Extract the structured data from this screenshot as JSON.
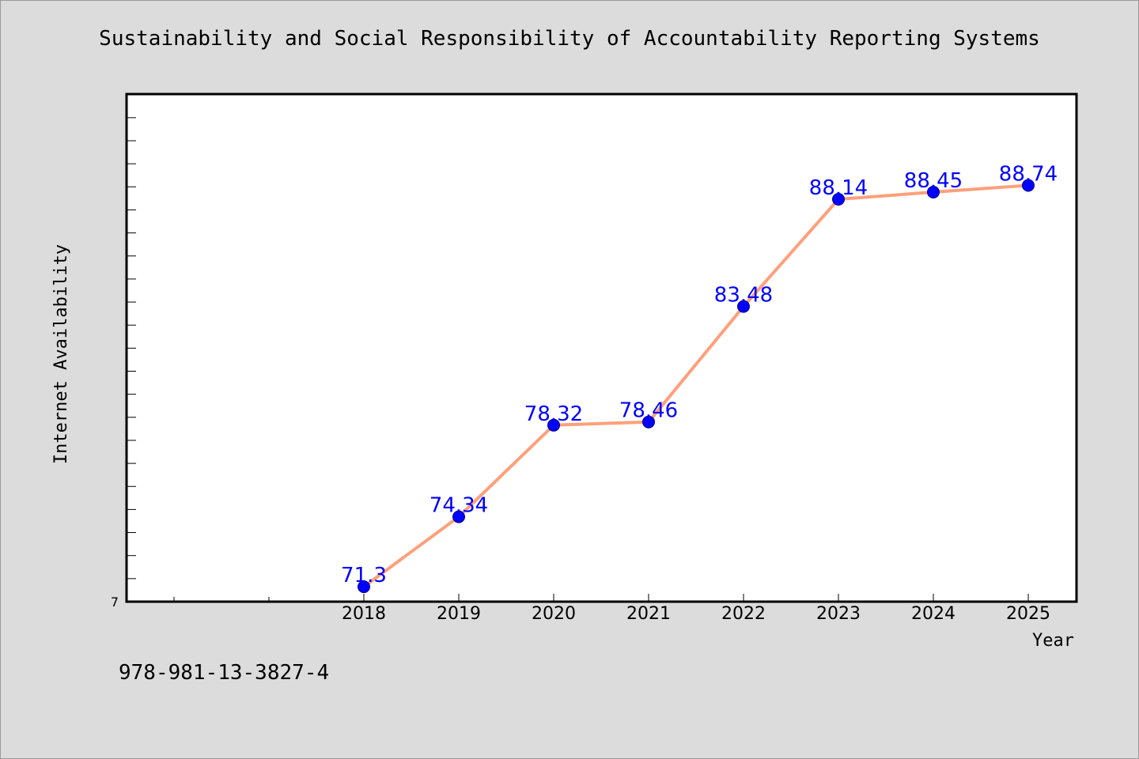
{
  "chart_data": {
    "type": "line",
    "title": "Sustainability and Social Responsibility of Accountability Reporting Systems",
    "xlabel": "Year",
    "ylabel": "Internet Availability",
    "categories": [
      "2018",
      "2019",
      "2020",
      "2021",
      "2022",
      "2023",
      "2024",
      "2025"
    ],
    "series": [
      {
        "values": [
          71.3,
          74.34,
          78.32,
          78.46,
          83.48,
          88.14,
          88.45,
          88.74
        ],
        "value_labels": [
          "71.3",
          "74.34",
          "78.32",
          "78.46",
          "83.48",
          "88.14",
          "88.45",
          "88.74"
        ]
      }
    ],
    "y_tick_label": "7",
    "ylim": [
      70.65,
      92.71
    ],
    "grid": false,
    "line_color": "#ffa07a",
    "marker_color": "#0000ff",
    "label_color": "#0000ff"
  },
  "footer": {
    "isbn": "978-981-13-3827-4"
  }
}
